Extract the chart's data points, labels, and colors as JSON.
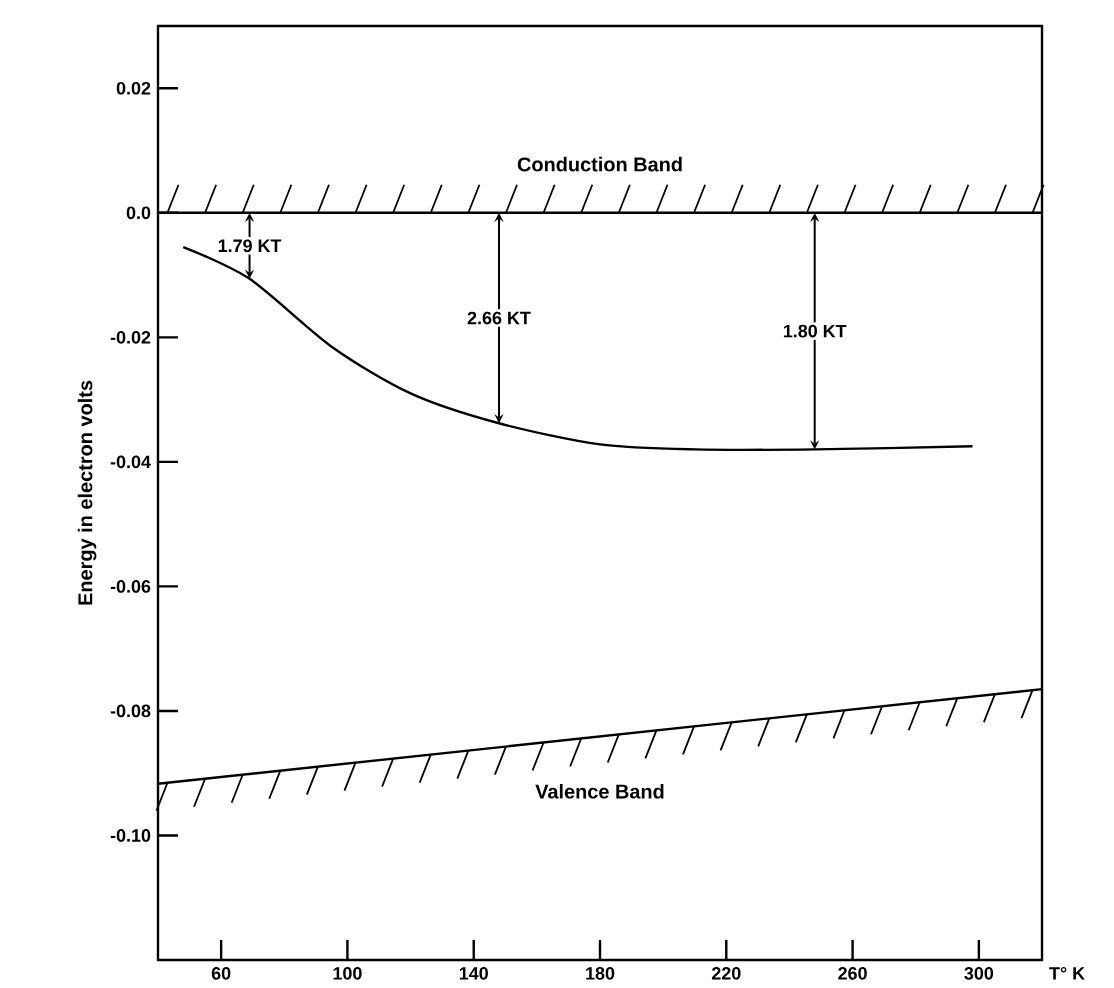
{
  "chart_data": {
    "type": "line",
    "ylabel": "Energy in electron volts",
    "xlabel": "T° K",
    "xlim": [
      40,
      320
    ],
    "ylim": [
      -0.12,
      0.03
    ],
    "xticks": [
      60,
      100,
      140,
      180,
      220,
      260,
      300
    ],
    "yticks": [
      0.02,
      {
        "value": 0,
        "label": "0.0"
      },
      -0.02,
      -0.04,
      -0.06,
      -0.08,
      {
        "value": -0.1,
        "label": "-0.10"
      }
    ],
    "grid": false,
    "marker": "none",
    "line_style": "solid",
    "series": [
      {
        "color": "#000000",
        "x": [
          48,
          69,
          95,
          120,
          148,
          180,
          210,
          248,
          298
        ],
        "values": [
          -0.0055,
          -0.0106,
          -0.0215,
          -0.029,
          -0.0338,
          -0.0372,
          -0.038,
          -0.038,
          -0.0375
        ]
      },
      {
        "name": "Valence Band",
        "color": "#000000",
        "x": [
          40,
          320
        ],
        "values": [
          -0.0917,
          -0.0765
        ]
      }
    ],
    "ref_lines": [
      {
        "axis": "y",
        "value": 0,
        "label": "Conduction Band",
        "color": "#000000"
      }
    ],
    "annotations": [
      {
        "text": "1.79 KT",
        "x": 69,
        "y": -0.0106
      },
      {
        "text": "2.66 KT",
        "x": 148,
        "y": -0.0338
      },
      {
        "text": "1.80 KT",
        "x": 248,
        "y": -0.038
      }
    ]
  }
}
